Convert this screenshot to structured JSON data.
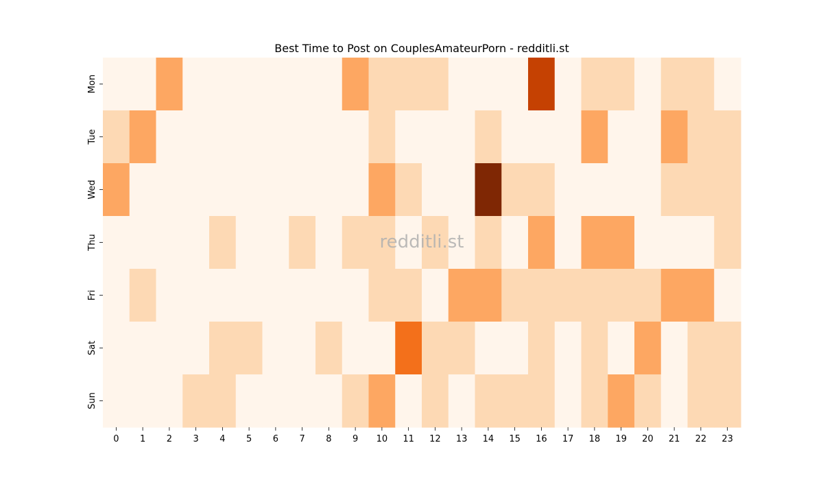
{
  "chart_data": {
    "type": "heatmap",
    "title": "Best Time to Post on CouplesAmateurPorn - redditli.st",
    "watermark": "redditli.st",
    "xlabel": "",
    "ylabel": "",
    "x_categories": [
      "0",
      "1",
      "2",
      "3",
      "4",
      "5",
      "6",
      "7",
      "8",
      "9",
      "10",
      "11",
      "12",
      "13",
      "14",
      "15",
      "16",
      "17",
      "18",
      "19",
      "20",
      "21",
      "22",
      "23"
    ],
    "y_categories": [
      "Mon",
      "Tue",
      "Wed",
      "Thu",
      "Fri",
      "Sat",
      "Sun"
    ],
    "values": [
      [
        0,
        0,
        2,
        0,
        0,
        0,
        0,
        0,
        0,
        2,
        1,
        1,
        1,
        0,
        0,
        0,
        4,
        0,
        1,
        1,
        0,
        1,
        1,
        0
      ],
      [
        1,
        2,
        0,
        0,
        0,
        0,
        0,
        0,
        0,
        0,
        1,
        0,
        0,
        0,
        1,
        0,
        0,
        0,
        2,
        0,
        0,
        2,
        1,
        1
      ],
      [
        2,
        0,
        0,
        0,
        0,
        0,
        0,
        0,
        0,
        0,
        2,
        1,
        0,
        0,
        5,
        1,
        1,
        0,
        0,
        0,
        0,
        1,
        1,
        1
      ],
      [
        0,
        0,
        0,
        0,
        1,
        0,
        0,
        1,
        0,
        1,
        1,
        0,
        1,
        0,
        1,
        0,
        2,
        0,
        2,
        2,
        0,
        0,
        0,
        1
      ],
      [
        0,
        1,
        0,
        0,
        0,
        0,
        0,
        0,
        0,
        0,
        1,
        1,
        0,
        2,
        2,
        1,
        1,
        1,
        1,
        1,
        1,
        2,
        2,
        0
      ],
      [
        0,
        0,
        0,
        0,
        1,
        1,
        0,
        0,
        1,
        0,
        0,
        3,
        1,
        1,
        0,
        0,
        1,
        0,
        1,
        0,
        2,
        0,
        1,
        1
      ],
      [
        0,
        0,
        0,
        1,
        1,
        0,
        0,
        0,
        0,
        1,
        2,
        0,
        1,
        0,
        1,
        1,
        1,
        0,
        1,
        2,
        1,
        0,
        1,
        1
      ]
    ],
    "color_scale": [
      "#fff5eb",
      "#fdd9b4",
      "#fda762",
      "#f3701b",
      "#c54102",
      "#7f2704"
    ],
    "grid": false,
    "colorbar": false
  }
}
